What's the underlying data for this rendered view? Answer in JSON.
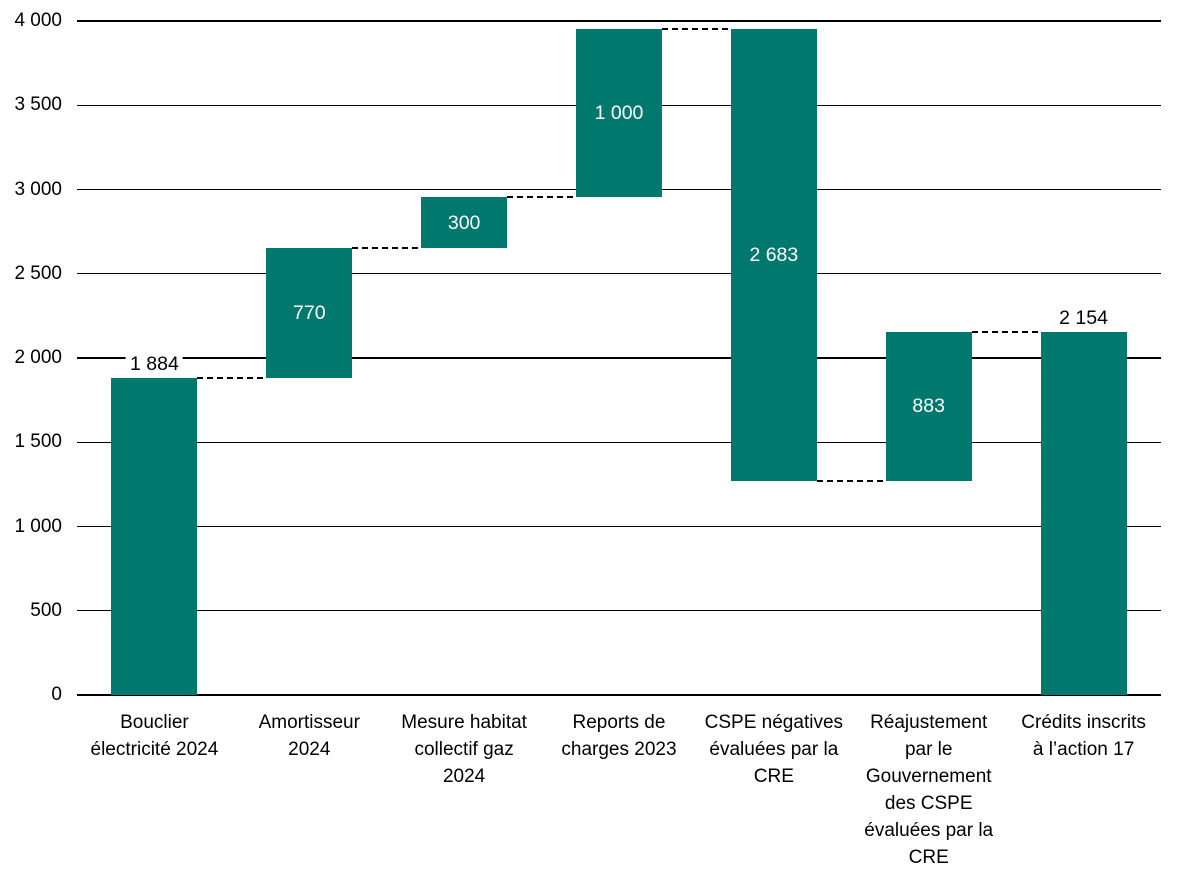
{
  "chart_data": {
    "type": "waterfall",
    "title": "",
    "grid": true,
    "legend": "none",
    "ylim": [
      0,
      4000
    ],
    "ytick_step": 500,
    "bar_color": "#00786E",
    "gridline_color": "#000000",
    "connector_color": "#000000",
    "connector_style": "dashed",
    "label_inside_color": "#FFFFFF",
    "label_above_color": "#000000",
    "yticks": [
      {
        "value": 0,
        "label": "0"
      },
      {
        "value": 500,
        "label": "500"
      },
      {
        "value": 1000,
        "label": "1 000"
      },
      {
        "value": 1500,
        "label": "1 500"
      },
      {
        "value": 2000,
        "label": "2 000"
      },
      {
        "value": 2500,
        "label": "2 500"
      },
      {
        "value": 3000,
        "label": "3 000"
      },
      {
        "value": 3500,
        "label": "3 500"
      },
      {
        "value": 4000,
        "label": "4 000"
      }
    ],
    "bars": [
      {
        "category": "Bouclier\nélectricité 2024",
        "start": 0,
        "end": 1884,
        "value": 1884,
        "display": "1 884",
        "label_position": "above"
      },
      {
        "category": "Amortisseur\n2024",
        "start": 1884,
        "end": 2654,
        "value": 770,
        "display": "770",
        "label_position": "inside"
      },
      {
        "category": "Mesure habitat\ncollectif gaz\n2024",
        "start": 2654,
        "end": 2954,
        "value": 300,
        "display": "300",
        "label_position": "inside"
      },
      {
        "category": "Reports de\ncharges 2023",
        "start": 2954,
        "end": 3954,
        "value": 1000,
        "display": "1 000",
        "label_position": "inside"
      },
      {
        "category": "CSPE négatives\névaluées par la\nCRE",
        "start": 3954,
        "end": 1271,
        "value": -2683,
        "display": "2 683",
        "label_position": "inside"
      },
      {
        "category": "Réajustement\npar le\nGouvernement\ndes CSPE\névaluées par la\nCRE",
        "start": 1271,
        "end": 2154,
        "value": 883,
        "display": "883",
        "label_position": "inside"
      },
      {
        "category": "Crédits inscrits\nà l’action 17",
        "start": 0,
        "end": 2154,
        "value": 2154,
        "display": "2 154",
        "label_position": "above"
      }
    ]
  }
}
